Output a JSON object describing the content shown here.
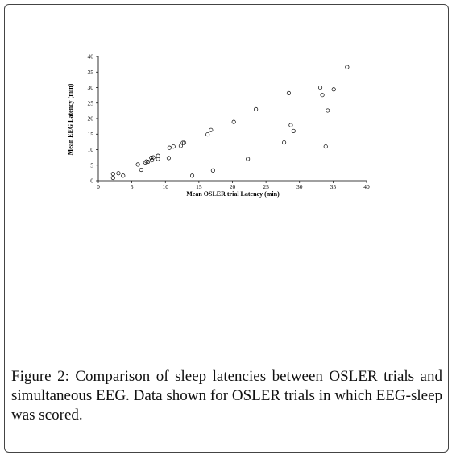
{
  "figure": {
    "caption_label": "Figure 2:",
    "caption_text": " Comparison of sleep latencies between OSLER trials and simultaneous EEG. Data shown for OSLER trials in which EEG-sleep was scored."
  },
  "chart_data": {
    "type": "scatter",
    "title": "",
    "xlabel": "Mean OSLER trial Latency (min)",
    "ylabel": "Mean EEG Latency (min)",
    "xlim": [
      0,
      40
    ],
    "ylim": [
      0,
      40
    ],
    "xticks": [
      "0",
      "5",
      "10",
      "15",
      "20",
      "25",
      "30",
      "35",
      "40"
    ],
    "yticks": [
      "0",
      "5",
      "10",
      "15",
      "20",
      "25",
      "30",
      "35",
      "40"
    ],
    "grid": false,
    "marker": "open-circle",
    "points": [
      [
        2.2,
        0.9
      ],
      [
        2.2,
        2.2
      ],
      [
        3.0,
        2.4
      ],
      [
        3.7,
        1.6
      ],
      [
        5.9,
        5.2
      ],
      [
        6.4,
        3.5
      ],
      [
        7.0,
        5.9
      ],
      [
        7.2,
        6.2
      ],
      [
        7.4,
        6.1
      ],
      [
        8.0,
        6.6
      ],
      [
        7.9,
        7.4
      ],
      [
        8.2,
        7.5
      ],
      [
        8.9,
        7.0
      ],
      [
        8.9,
        8.0
      ],
      [
        10.5,
        7.3
      ],
      [
        10.6,
        10.6
      ],
      [
        11.2,
        11.0
      ],
      [
        12.3,
        11.2
      ],
      [
        12.6,
        12.2
      ],
      [
        12.8,
        12.2
      ],
      [
        14.0,
        1.6
      ],
      [
        16.3,
        14.9
      ],
      [
        16.8,
        16.3
      ],
      [
        17.1,
        3.3
      ],
      [
        20.2,
        18.9
      ],
      [
        22.3,
        7.0
      ],
      [
        23.5,
        23.0
      ],
      [
        27.7,
        12.3
      ],
      [
        28.4,
        28.2
      ],
      [
        28.7,
        17.9
      ],
      [
        29.1,
        16.0
      ],
      [
        33.1,
        30.0
      ],
      [
        33.4,
        27.6
      ],
      [
        33.9,
        11.0
      ],
      [
        34.2,
        22.6
      ],
      [
        35.1,
        29.4
      ],
      [
        37.1,
        36.6
      ]
    ]
  }
}
